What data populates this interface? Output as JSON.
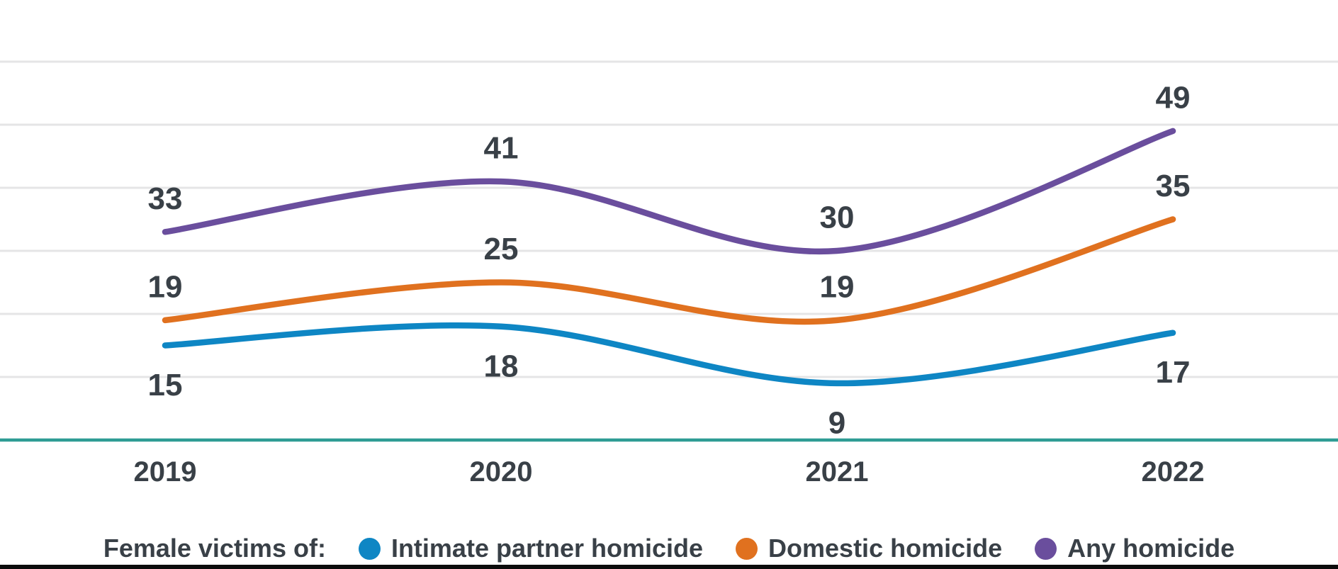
{
  "chart_data": {
    "type": "line",
    "title": "",
    "xlabel": "",
    "ylabel": "",
    "categories": [
      "2019",
      "2020",
      "2021",
      "2022"
    ],
    "series": [
      {
        "name": "Intimate partner homicide",
        "color": "#0e86c4",
        "values": [
          15,
          18,
          9,
          17
        ],
        "label_position": "below"
      },
      {
        "name": "Domestic homicide",
        "color": "#e0711f",
        "values": [
          19,
          25,
          19,
          35
        ],
        "label_position": "above"
      },
      {
        "name": "Any homicide",
        "color": "#6a4e9d",
        "values": [
          33,
          41,
          30,
          49
        ],
        "label_position": "above"
      }
    ],
    "ylim": [
      0,
      65
    ],
    "gridline_values": [
      10,
      20,
      30,
      40,
      50,
      60
    ],
    "grid": "horizontal",
    "grid_color": "#e5e5e6",
    "baseline_value": 0,
    "baseline_color": "#2e9c94",
    "legend_position": "bottom",
    "smooth": true,
    "data_labels": true
  },
  "legend": {
    "prefix": "Female victims of:"
  },
  "colors": {
    "label_text": "#394047",
    "bottom_bar": "#0c0c0c"
  }
}
